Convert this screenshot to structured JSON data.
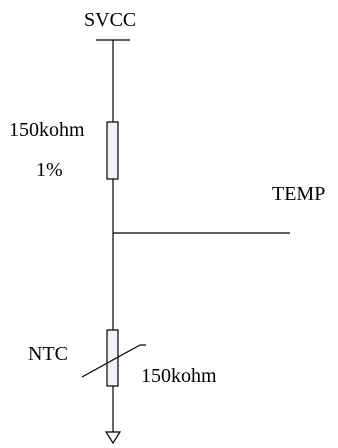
{
  "supply_label": "SVCC",
  "top_resistor": {
    "value": "150kohm",
    "tolerance": "1%"
  },
  "output_net": "TEMP",
  "thermistor": {
    "name": "NTC",
    "value": "150kohm"
  }
}
